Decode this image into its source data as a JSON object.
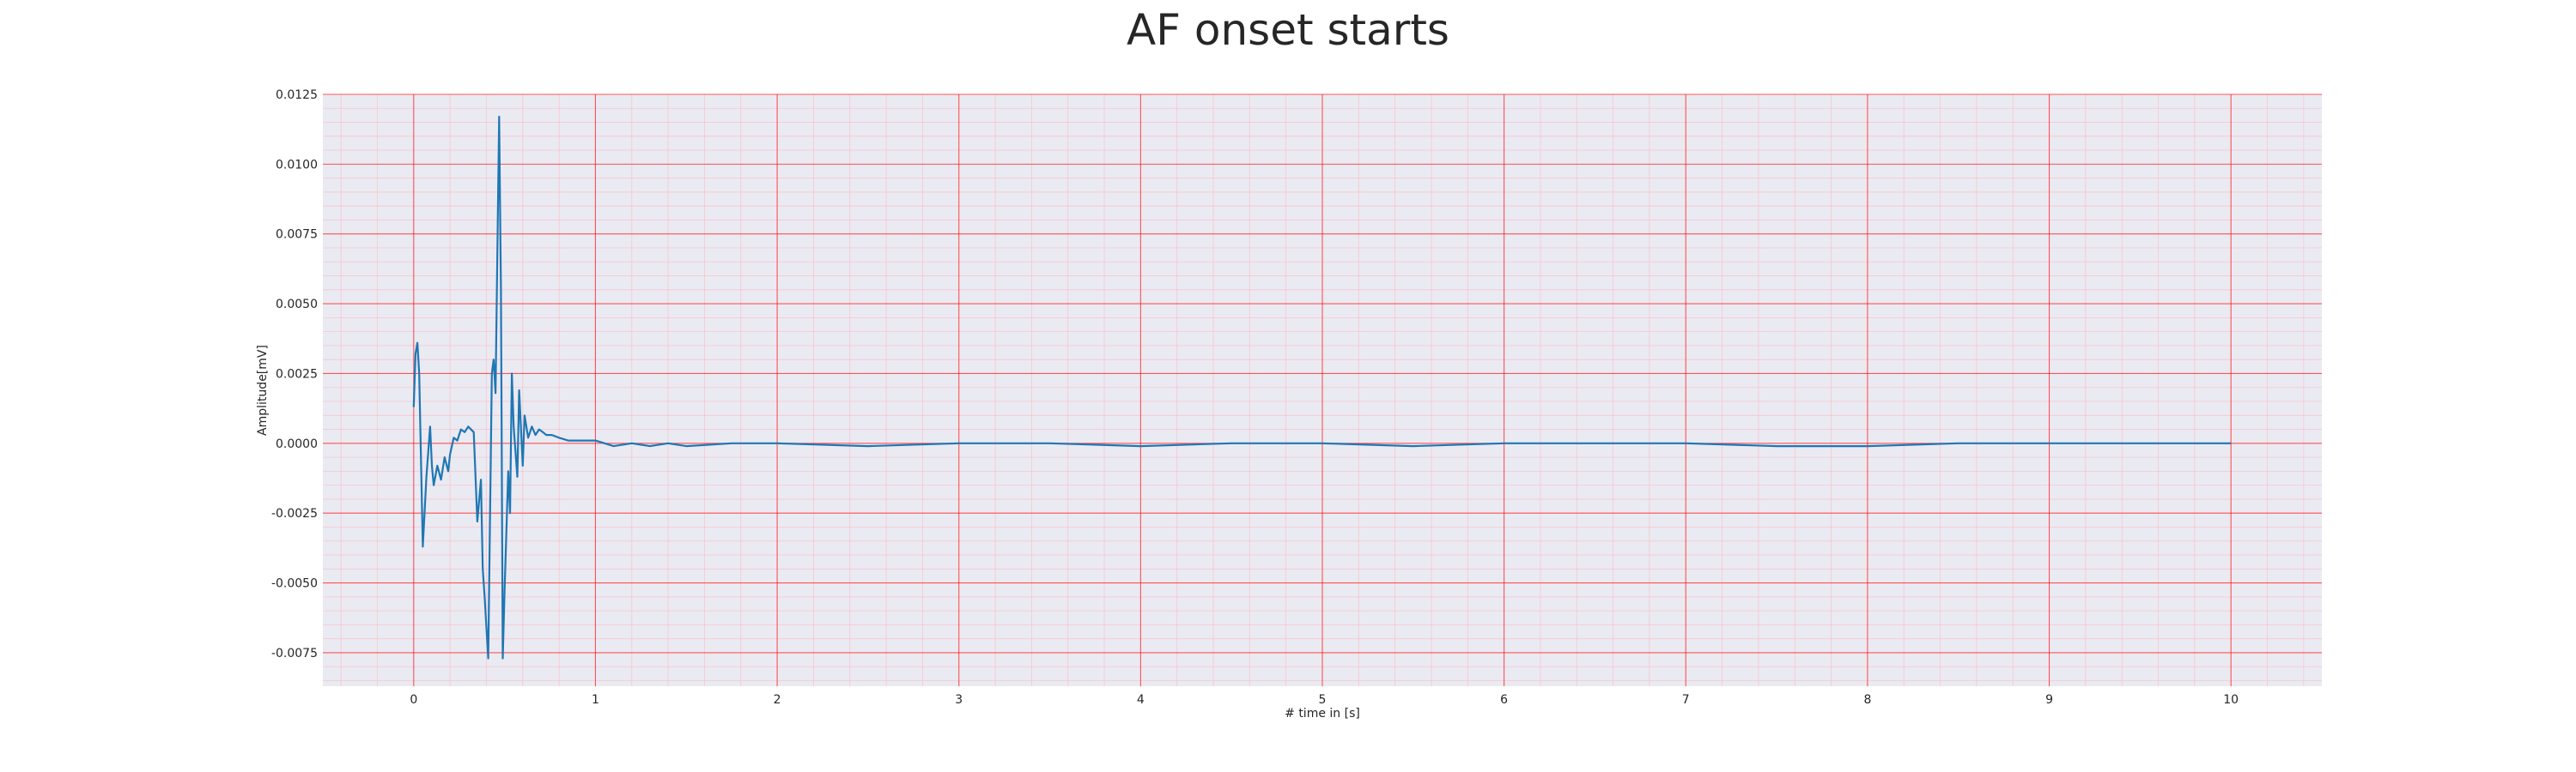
{
  "chart_data": {
    "type": "line",
    "title": "AF onset starts",
    "xlabel": "# time in [s]",
    "ylabel": "Amplitude[mV]",
    "xlim": [
      -0.5,
      10.5
    ],
    "ylim": [
      -0.0087,
      0.0125
    ],
    "x_ticks": [
      0,
      1,
      2,
      3,
      4,
      5,
      6,
      7,
      8,
      9,
      10
    ],
    "x_tick_labels": [
      "0",
      "1",
      "2",
      "3",
      "4",
      "5",
      "6",
      "7",
      "8",
      "9",
      "10"
    ],
    "y_ticks": [
      -0.0075,
      -0.005,
      -0.0025,
      0.0,
      0.0025,
      0.005,
      0.0075,
      0.01,
      0.0125
    ],
    "y_tick_labels": [
      "-0.0075",
      "-0.0050",
      "-0.0025",
      "0.0000",
      "0.0025",
      "0.0050",
      "0.0075",
      "0.0100",
      "0.0125"
    ],
    "grid": true,
    "minor_grid": true,
    "colors": {
      "background": "#eaeaf2",
      "major_grid": "#ff0000",
      "minor_grid": "#ffb6c1",
      "line": "#1f77b4"
    },
    "series": [
      {
        "x": [
          0.0,
          0.01,
          0.02,
          0.03,
          0.05,
          0.07,
          0.09,
          0.1,
          0.11,
          0.13,
          0.15,
          0.17,
          0.19,
          0.2,
          0.22,
          0.24,
          0.26,
          0.28,
          0.3,
          0.33,
          0.35,
          0.37,
          0.38,
          0.39,
          0.41,
          0.43,
          0.44,
          0.45,
          0.47,
          0.48,
          0.49,
          0.5,
          0.52,
          0.53,
          0.54,
          0.55,
          0.57,
          0.58,
          0.6,
          0.61,
          0.63,
          0.65,
          0.67,
          0.69,
          0.71,
          0.73,
          0.76,
          0.8,
          0.85,
          0.9,
          0.95,
          1.0,
          1.1,
          1.2,
          1.3,
          1.4,
          1.5,
          1.75,
          2.0,
          2.5,
          3.0,
          3.5,
          4.0,
          4.5,
          5.0,
          5.5,
          6.0,
          6.5,
          7.0,
          7.5,
          8.0,
          8.5,
          9.0,
          9.5,
          10.0
        ],
        "y": [
          0.0013,
          0.0032,
          0.0036,
          0.0025,
          -0.0037,
          -0.0012,
          0.0006,
          -0.0008,
          -0.0015,
          -0.0008,
          -0.0013,
          -0.0005,
          -0.001,
          -0.0004,
          0.0002,
          0.0001,
          0.0005,
          0.0004,
          0.0006,
          0.0004,
          -0.0028,
          -0.0013,
          -0.0045,
          -0.0055,
          -0.0077,
          0.0025,
          0.003,
          0.0018,
          0.0117,
          0.0055,
          -0.0077,
          -0.0053,
          -0.001,
          -0.0025,
          0.0025,
          0.0006,
          -0.0012,
          0.0019,
          -0.0008,
          0.001,
          0.0002,
          0.0006,
          0.0003,
          0.0005,
          0.0004,
          0.0003,
          0.0003,
          0.0002,
          0.0001,
          0.0001,
          0.0001,
          0.0001,
          -0.0001,
          0.0,
          -0.0001,
          0.0,
          -0.0001,
          0.0,
          0.0,
          -0.0001,
          0.0,
          0.0,
          -0.0001,
          0.0,
          0.0,
          -0.0001,
          0.0,
          0.0,
          0.0,
          -0.0001,
          -0.0001,
          0.0,
          0.0,
          0.0,
          0.0
        ]
      }
    ]
  }
}
